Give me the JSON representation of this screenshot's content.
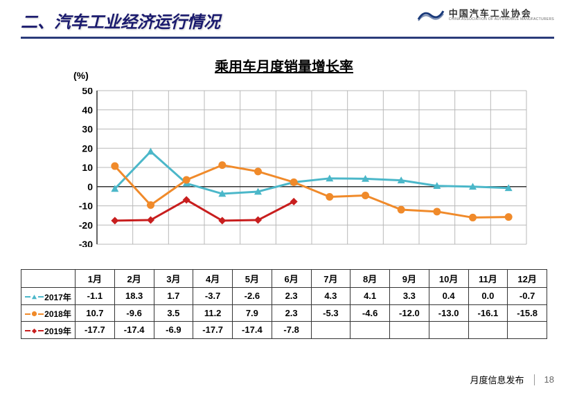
{
  "header": {
    "title": "二、汽车工业经济运行情况",
    "logo_cn": "中国汽车工业协会",
    "logo_en": "CHINA ASSOCIATION OF AUTOMOBILE MANUFACTURERS"
  },
  "chart": {
    "title": "乘用车月度销量增长率",
    "y_unit": "(%)",
    "ylim": [
      -30,
      50
    ],
    "ytick_step": 10,
    "yticks": [
      50,
      40,
      30,
      20,
      10,
      0,
      -10,
      -20,
      -30
    ],
    "months": [
      "1月",
      "2月",
      "3月",
      "4月",
      "5月",
      "6月",
      "7月",
      "8月",
      "9月",
      "10月",
      "11月",
      "12月"
    ],
    "grid_color": "#b8b8b8",
    "axis_color": "#333333",
    "series": [
      {
        "name": "2017年",
        "color": "#4bb7c9",
        "marker": "triangle",
        "values": [
          -1.1,
          18.3,
          1.7,
          -3.7,
          -2.6,
          2.3,
          4.3,
          4.1,
          3.3,
          0.4,
          0.0,
          -0.7
        ]
      },
      {
        "name": "2018年",
        "color": "#f08a2a",
        "marker": "circle",
        "values": [
          10.7,
          -9.6,
          3.5,
          11.2,
          7.9,
          2.3,
          -5.3,
          -4.6,
          -12.0,
          -13.0,
          -16.1,
          -15.8
        ]
      },
      {
        "name": "2019年",
        "color": "#c81e1e",
        "marker": "diamond",
        "values": [
          -17.7,
          -17.4,
          -6.9,
          -17.7,
          -17.4,
          -7.8
        ]
      }
    ],
    "line_width": 3,
    "marker_size": 7,
    "label_fontsize": 14
  },
  "footer": {
    "label": "月度信息发布",
    "page": "18"
  }
}
